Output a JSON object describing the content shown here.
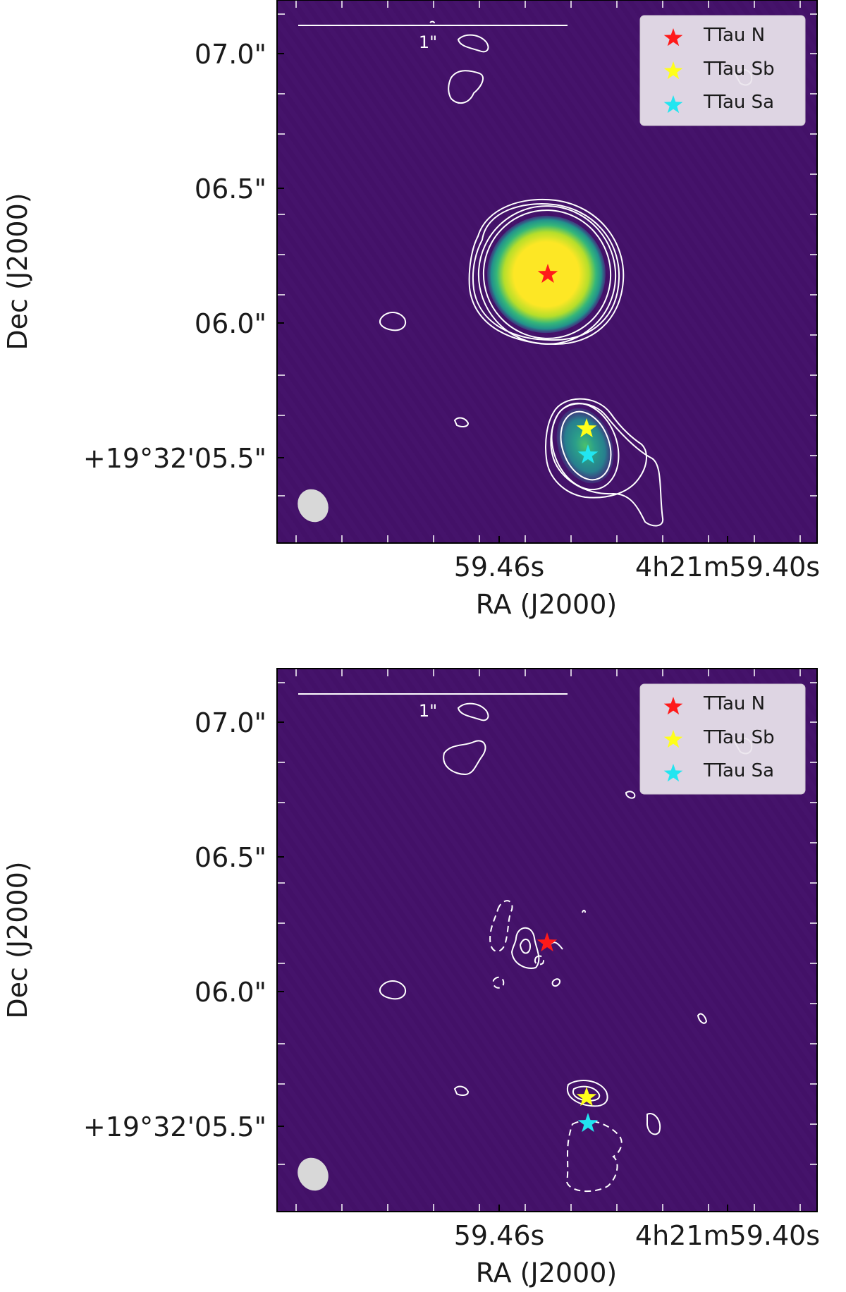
{
  "panels": [
    {
      "id": "top",
      "dec_ticks": [
        "07.0\"",
        "06.5\"",
        "06.0\"",
        "+19°32'05.5\""
      ],
      "ra_ticks": [
        "59.46s",
        "4h21m59.40s"
      ],
      "xlabel": "RA (J2000)",
      "ylabel": "Dec (J2000)",
      "scalebar_label": "1\"",
      "legend": [
        {
          "label": "TTau N",
          "color": "#ff1a1a"
        },
        {
          "label": "TTau Sb",
          "color": "#ffff1a"
        },
        {
          "label": "TTau Sa",
          "color": "#22e5f0"
        }
      ]
    },
    {
      "id": "bottom",
      "dec_ticks": [
        "07.0\"",
        "06.5\"",
        "06.0\"",
        "+19°32'05.5\""
      ],
      "ra_ticks": [
        "59.46s",
        "4h21m59.40s"
      ],
      "xlabel": "RA (J2000)",
      "ylabel": "Dec (J2000)",
      "scalebar_label": "1\"",
      "legend": [
        {
          "label": "TTau N",
          "color": "#ff1a1a"
        },
        {
          "label": "TTau Sb",
          "color": "#ffff1a"
        },
        {
          "label": "TTau Sa",
          "color": "#22e5f0"
        }
      ]
    }
  ]
}
